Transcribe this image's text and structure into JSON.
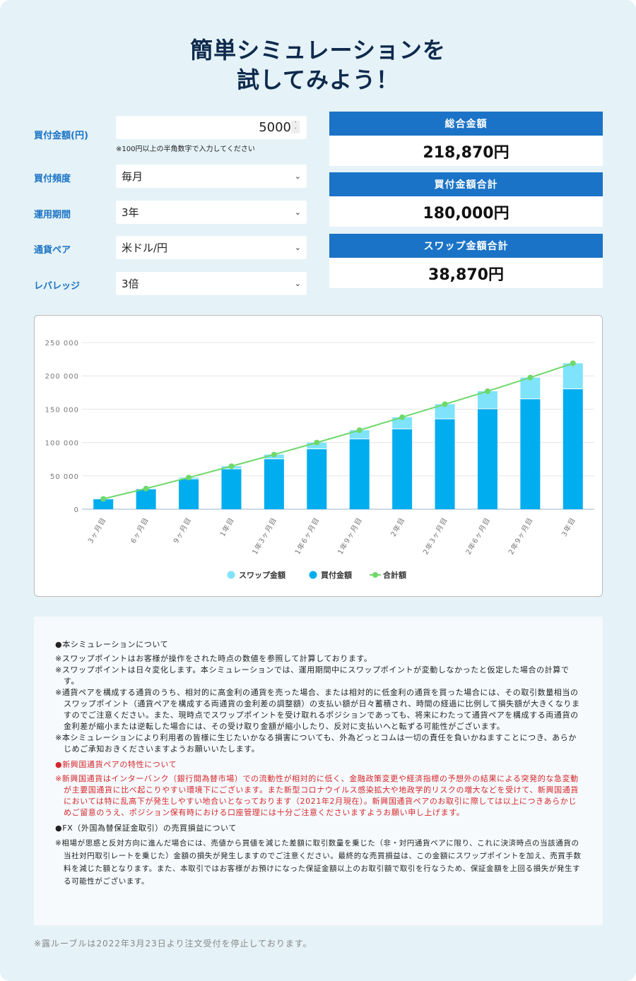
{
  "title_line1": "簡単シミュレーションを",
  "title_line2": "試してみよう！",
  "form": {
    "amount_label": "買付金額(円)",
    "amount_value": "5000",
    "amount_hint": "※100円以上の半角数字で入力してください",
    "frequency_label": "買付頻度",
    "frequency_value": "毎月",
    "period_label": "運用期間",
    "period_value": "3年",
    "pair_label": "通貨ペア",
    "pair_value": "米ドル/円",
    "leverage_label": "レバレッジ",
    "leverage_value": "3倍"
  },
  "results": [
    {
      "label": "総合金額",
      "value": "218,870円"
    },
    {
      "label": "買付金額合計",
      "value": "180,000円"
    },
    {
      "label": "スワップ金額合計",
      "value": "38,870円"
    }
  ],
  "colors": {
    "accent": "#1a73c6",
    "swap": "#7fe3fc",
    "bought": "#00adef",
    "total": "#6fd86a"
  },
  "chart_data": {
    "type": "bar",
    "stacked": true,
    "categories": [
      "3ヶ月目",
      "6ヶ月目",
      "9ヶ月目",
      "1年目",
      "1年3ヶ月目",
      "1年6ヶ月目",
      "1年9ヶ月目",
      "2年目",
      "2年3ヶ月目",
      "2年6ヶ月目",
      "2年9ヶ月目",
      "3年目"
    ],
    "series": [
      {
        "name": "買付金額",
        "type": "bar",
        "values": [
          15000,
          30000,
          45000,
          60000,
          75000,
          90000,
          105000,
          120000,
          135000,
          150000,
          165000,
          180000
        ]
      },
      {
        "name": "スワップ金額",
        "type": "bar",
        "values": [
          500,
          1000,
          2500,
          4500,
          7000,
          10000,
          13500,
          18000,
          22500,
          27000,
          32500,
          38870
        ]
      },
      {
        "name": "合計額",
        "type": "line",
        "values": [
          15500,
          31000,
          47500,
          64500,
          82000,
          100000,
          118500,
          138000,
          157500,
          177000,
          197500,
          218870
        ]
      }
    ],
    "yticks": [
      "0",
      "50 000",
      "100 000",
      "150 000",
      "200 000",
      "250 000"
    ],
    "ylim": [
      0,
      250000
    ],
    "grid": true,
    "legend_placement": "bottom",
    "legend": [
      "スワップ金額",
      "買付金額",
      "合計額"
    ]
  },
  "notes": {
    "h1": "●本シミュレーションについて",
    "p1": "※スワップポイントはお客様が操作をされた時点の数値を参照して計算しております。",
    "p2": "※スワップポイントは日々変化します。本シミュレーションでは、運用期間中にスワップポイントが変動しなかったと仮定した場合の計算です。",
    "p3": "※通貨ペアを構成する通貨のうち、相対的に高金利の通貨を売った場合、または相対的に低金利の通貨を買った場合には、その取引数量相当のスワップポイント（通貨ペアを構成する両通貨の金利差の調整額）の支払い額が日々蓄積され、時間の経過に比例して損失額が大きくなりますのでご注意ください。また、現時点でスワップポイントを受け取れるポジションであっても、将来にわたって通貨ペアを構成する両通貨の金利差が縮小または逆転した場合には、その受け取り金額が縮小したり、反対に支払いへと転ずる可能性がございます。",
    "p4": "※本シミュレーションにより利用者の皆様に生じたいかなる損害についても、外為どっとコムは一切の責任を負いかねますことにつき、あらかじめご承知おきくださいますようお願いいたします。",
    "h2": "●新興国通貨ペアの特性について",
    "p5": "※新興国通貨はインターバンク（銀行間為替市場）での流動性が相対的に低く、金融政策変更や経済指標の予想外の結果による突発的な急変動が主要国通貨に比べ起こりやすい環境下にございます。また新型コロナウイルス感染拡大や地政学的リスクの増大などを受けて、新興国通貨においては特に乱高下が発生しやすい地合いとなっております（2021年2月現在）。新興国通貨ペアのお取引に際しては以上につきあらかじめご留意のうえ、ポジション保有時における口座管理には十分ご注意くださいますようお願い申し上げます。",
    "h3": "●FX（外国為替保証金取引）の売買損益について",
    "p6": "※相場が思惑と反対方向に進んだ場合には、売値から買値を減じた差額に取引数量を乗じた（非・対円通貨ペアに限り、これに決済時点の当該通貨の当社対円取引レートを乗じた）金額の損失が発生しますのでご注意ください。最終的な売買損益は、この金額にスワップポイントを加え、売買手数料を減じた額となります。また、本取引ではお客様がお預けになった保証金額以上のお取引額で取引を行なうため、保証金額を上回る損失が発生する可能性がございます。"
  },
  "footnote": "※露ルーブルは2022年3月23日より注文受付を停止しております。"
}
